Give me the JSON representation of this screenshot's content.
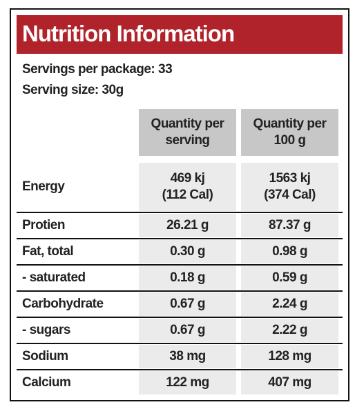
{
  "header": {
    "title": "Nutrition Information"
  },
  "servings": [
    "Servings per package: 33",
    "Serving size: 30g"
  ],
  "table": {
    "columns": [
      "Quantity per serving",
      "Quantity per 100 g"
    ],
    "rows": [
      {
        "label": "Energy",
        "values": [
          [
            "469 kj",
            "(112 Cal)"
          ],
          [
            "1563 kj",
            "(374 Cal)"
          ]
        ]
      },
      {
        "label": "Protien",
        "values": [
          [
            "26.21 g"
          ],
          [
            "87.37 g"
          ]
        ]
      },
      {
        "label": "Fat, total",
        "values": [
          [
            "0.30 g"
          ],
          [
            "0.98 g"
          ]
        ]
      },
      {
        "label": "- saturated",
        "values": [
          [
            "0.18 g"
          ],
          [
            "0.59 g"
          ]
        ]
      },
      {
        "label": "Carbohydrate",
        "values": [
          [
            "0.67 g"
          ],
          [
            "2.24 g"
          ]
        ]
      },
      {
        "label": "- sugars",
        "values": [
          [
            "0.67 g"
          ],
          [
            "2.22 g"
          ]
        ]
      },
      {
        "label": "Sodium",
        "values": [
          [
            "38 mg"
          ],
          [
            "128 mg"
          ]
        ]
      },
      {
        "label": "Calcium",
        "values": [
          [
            "122 mg"
          ],
          [
            "407 mg"
          ]
        ]
      }
    ]
  }
}
